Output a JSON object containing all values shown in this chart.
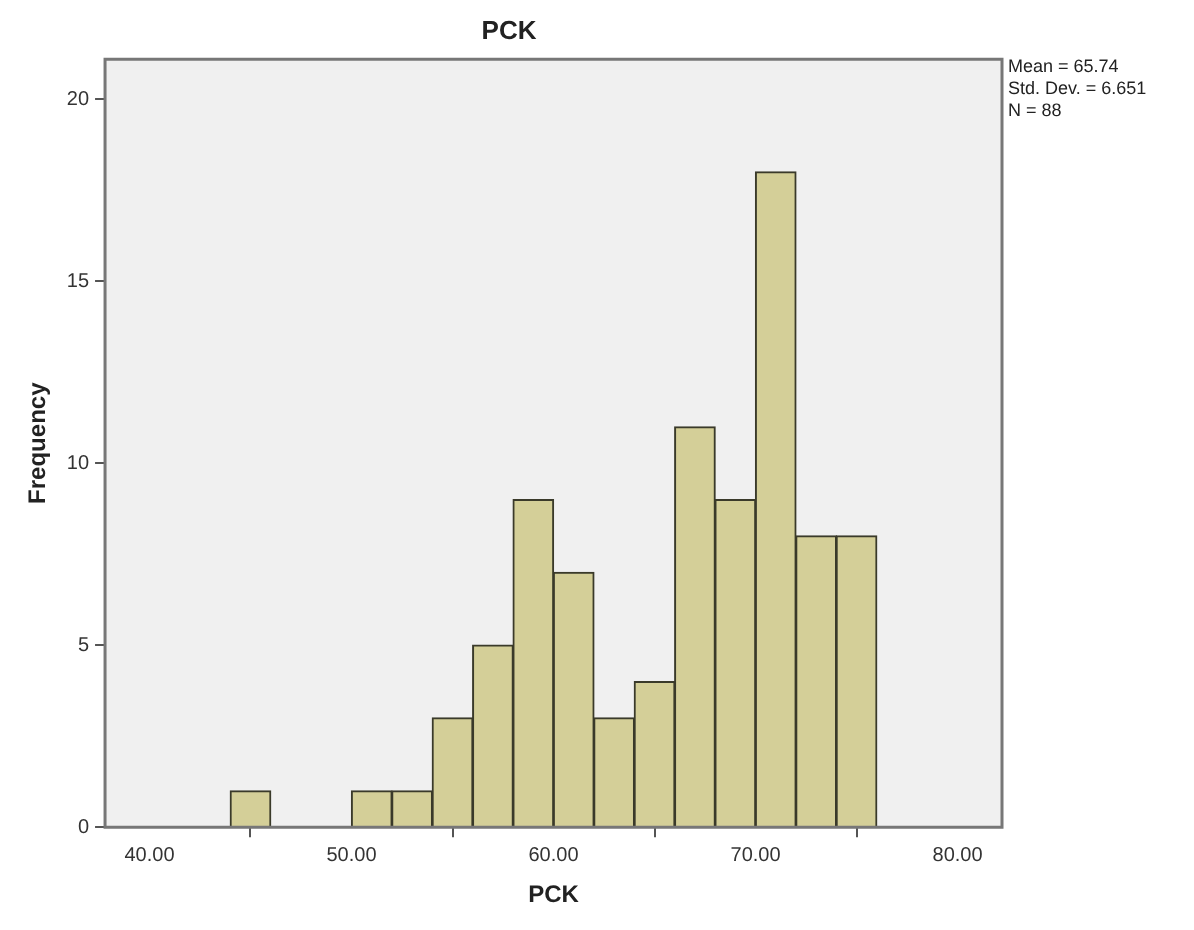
{
  "chart_data": {
    "type": "histogram",
    "title": "PCK",
    "xlabel": "PCK",
    "ylabel": "Frequency",
    "bins": [
      44,
      46,
      48,
      50,
      52,
      54,
      56,
      58,
      60,
      62,
      64,
      66,
      68,
      70,
      72,
      74,
      76
    ],
    "values": [
      1,
      0,
      0,
      1,
      1,
      3,
      5,
      9,
      7,
      3,
      4,
      11,
      9,
      18,
      8,
      8
    ],
    "color": "#d4cf98",
    "xlim": [
      37.8,
      82.2
    ],
    "xticks": [
      {
        "value": 40,
        "label": "40.00"
      },
      {
        "value": 50,
        "label": "50.00"
      },
      {
        "value": 60,
        "label": "60.00"
      },
      {
        "value": 70,
        "label": "70.00"
      },
      {
        "value": 80,
        "label": "80.00"
      }
    ],
    "ylim": [
      0,
      21.1
    ],
    "yticks": [
      0,
      5,
      10,
      15,
      20
    ],
    "grid": false,
    "legend": false,
    "annotations": [
      "Mean = 65.74",
      "Std. Dev. = 6.651",
      "N = 88"
    ]
  }
}
